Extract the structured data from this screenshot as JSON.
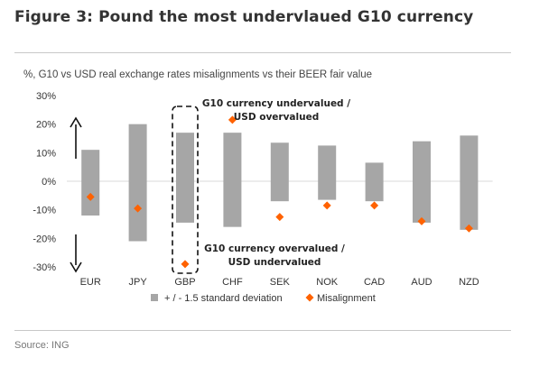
{
  "figure_title": "Figure 3: Pound the most undervlaued G10 currency",
  "source": "Source: ING",
  "chart_data": {
    "type": "bar",
    "subtitle": "%, G10 vs USD real exchange rates misalignments vs their BEER fair value",
    "categories": [
      "EUR",
      "JPY",
      "GBP",
      "CHF",
      "SEK",
      "NOK",
      "CAD",
      "AUD",
      "NZD"
    ],
    "series": [
      {
        "name": "+ / - 1.5 standard deviation",
        "type": "range-bar",
        "color": "#a6a6a6",
        "low": [
          -12,
          -21,
          -14.5,
          -16,
          -7,
          -6.5,
          -7,
          -14.5,
          -17
        ],
        "high": [
          11,
          20,
          17,
          17,
          13.5,
          12.5,
          6.5,
          14,
          16
        ]
      },
      {
        "name": "Misalignment",
        "type": "scatter",
        "color": "#ff6200",
        "values": [
          -5.5,
          -9.5,
          -29,
          21.5,
          -12.5,
          -8.5,
          -8.5,
          -14,
          -16.5
        ]
      }
    ],
    "y_ticks": [
      "30%",
      "20%",
      "10%",
      "0%",
      "-10%",
      "-20%",
      "-30%"
    ],
    "ylim": [
      -30,
      30
    ],
    "annotations": {
      "upper": [
        "G10 currency undervalued /",
        "USD overvalued"
      ],
      "lower": [
        "G10 currency overvalued /",
        "USD undervalued"
      ]
    },
    "highlight": "GBP",
    "legend_position": "bottom"
  }
}
